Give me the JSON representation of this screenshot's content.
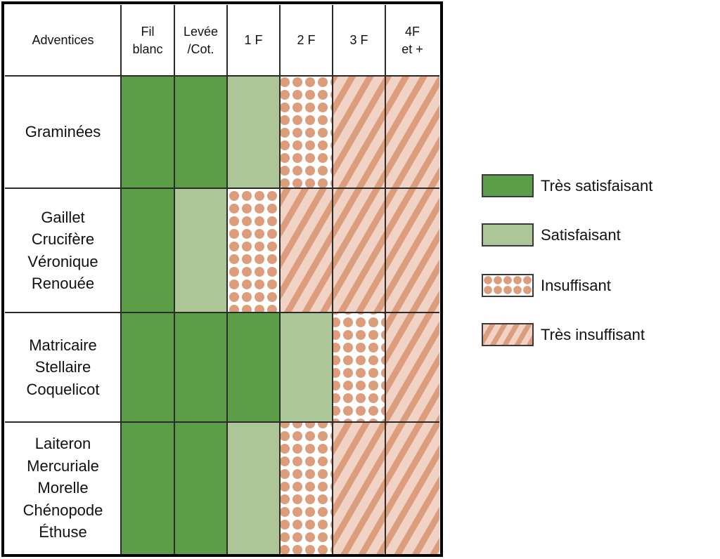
{
  "chart_data": {
    "type": "table",
    "title": "",
    "columns": [
      "Adventices",
      "Fil\nblanc",
      "Levée\n/Cot.",
      "1 F",
      "2 F",
      "3 F",
      "4F\net +"
    ],
    "rows": [
      {
        "label": "Graminées",
        "ratings": [
          "Très satisfaisant",
          "Très satisfaisant",
          "Satisfaisant",
          "Insuffisant",
          "Très insuffisant",
          "Très insuffisant"
        ]
      },
      {
        "label": "Gaillet\nCrucifère\nVéronique\nRenouée",
        "ratings": [
          "Très satisfaisant",
          "Satisfaisant",
          "Insuffisant",
          "Très insuffisant",
          "Très insuffisant",
          "Très insuffisant"
        ]
      },
      {
        "label": "Matricaire\nStellaire\nCoquelicot",
        "ratings": [
          "Très satisfaisant",
          "Très satisfaisant",
          "Très satisfaisant",
          "Satisfaisant",
          "Insuffisant",
          "Très insuffisant"
        ]
      },
      {
        "label": "Laiteron\nMercuriale\nMorelle\nChénopode\nÉthuse",
        "ratings": [
          "Très satisfaisant",
          "Très satisfaisant",
          "Satisfaisant",
          "Insuffisant",
          "Très insuffisant",
          "Très insuffisant"
        ]
      }
    ],
    "legend": {
      "placement": "right",
      "items": [
        {
          "label": "Très satisfaisant",
          "color": "#5b9e47",
          "pattern": "solid"
        },
        {
          "label": "Satisfaisant",
          "color": "#acc698",
          "pattern": "solid"
        },
        {
          "label": "Insuffisant",
          "color": "#dc9d7d",
          "pattern": "dots"
        },
        {
          "label": "Très insuffisant",
          "color": "#dc9d7d",
          "pattern": "stripes"
        }
      ]
    }
  }
}
